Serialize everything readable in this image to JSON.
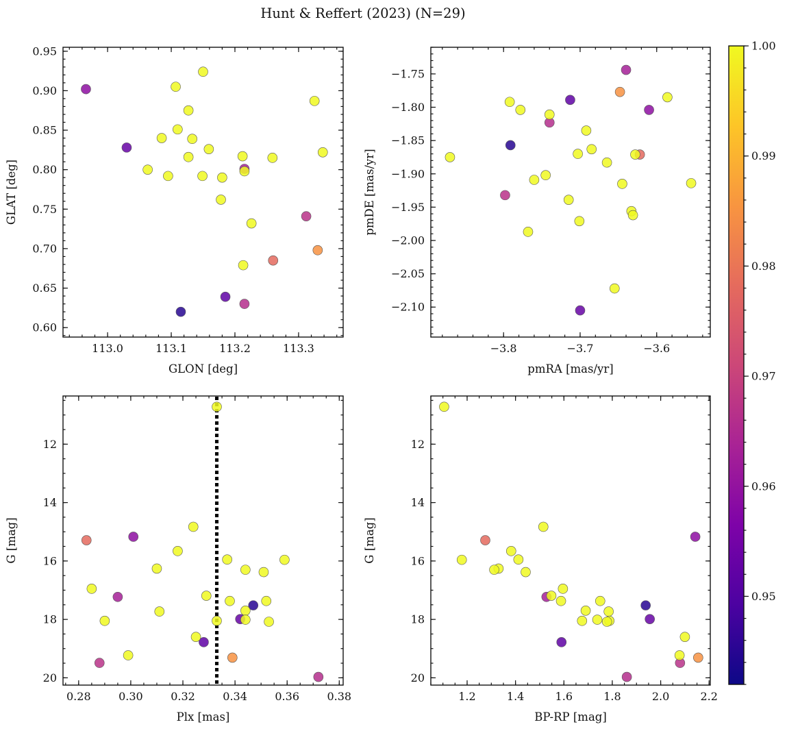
{
  "chart_data": {
    "title": "Hunt & Reffert (2023) (N=29)",
    "colorbar": {
      "min": 0.942,
      "max": 1.0,
      "ticks": [
        0.95,
        0.96,
        0.97,
        0.98,
        0.99,
        1.0
      ],
      "tick_labels": [
        "0.95",
        "0.96",
        "0.97",
        "0.98",
        "0.99",
        "1.00"
      ],
      "colormap": "plasma"
    },
    "stars": [
      {
        "glon": 113.215,
        "glat": 0.63,
        "pmra": -3.74,
        "pmde": -1.823,
        "plx": 0.372,
        "g": 19.97,
        "bprp": 1.86,
        "p": 0.966
      },
      {
        "glon": 113.312,
        "glat": 0.741,
        "pmra": -3.798,
        "pmde": -1.932,
        "plx": 0.288,
        "g": 19.49,
        "bprp": 2.08,
        "p": 0.967
      },
      {
        "glon": 113.26,
        "glat": 0.685,
        "pmra": -3.622,
        "pmde": -1.871,
        "plx": 0.283,
        "g": 15.29,
        "bprp": 1.275,
        "p": 0.978
      },
      {
        "glon": 113.33,
        "glat": 0.698,
        "pmra": -3.648,
        "pmde": -1.777,
        "plx": 0.339,
        "g": 19.31,
        "bprp": 2.155,
        "p": 0.985
      },
      {
        "glon": 112.966,
        "glat": 0.902,
        "pmra": -3.61,
        "pmde": -1.804,
        "plx": 0.301,
        "g": 15.17,
        "bprp": 2.143,
        "p": 0.959
      },
      {
        "glon": 113.215,
        "glat": 0.801,
        "pmra": -3.64,
        "pmde": -1.744,
        "plx": 0.295,
        "g": 17.23,
        "bprp": 1.528,
        "p": 0.963
      },
      {
        "glon": 113.03,
        "glat": 0.828,
        "pmra": -3.7,
        "pmde": -2.105,
        "plx": 0.342,
        "g": 17.99,
        "bprp": 1.955,
        "p": 0.953
      },
      {
        "glon": 113.185,
        "glat": 0.639,
        "pmra": -3.713,
        "pmde": -1.789,
        "plx": 0.328,
        "g": 18.78,
        "bprp": 1.59,
        "p": 0.952
      },
      {
        "glon": 113.115,
        "glat": 0.62,
        "pmra": -3.791,
        "pmde": -1.857,
        "plx": 0.347,
        "g": 17.52,
        "bprp": 1.938,
        "p": 0.945
      },
      {
        "glon": 113.15,
        "glat": 0.924,
        "pmra": -3.87,
        "pmde": -1.875,
        "plx": 0.333,
        "g": 10.72,
        "bprp": 1.105,
        "p": 1.0
      },
      {
        "glon": 113.107,
        "glat": 0.905,
        "pmra": -3.792,
        "pmde": -1.792,
        "plx": 0.324,
        "g": 14.83,
        "bprp": 1.515,
        "p": 1.0
      },
      {
        "glon": 113.325,
        "glat": 0.887,
        "pmra": -3.778,
        "pmde": -1.804,
        "plx": 0.359,
        "g": 15.96,
        "bprp": 1.178,
        "p": 1.0
      },
      {
        "glon": 113.127,
        "glat": 0.875,
        "pmra": -3.74,
        "pmde": -1.811,
        "plx": 0.318,
        "g": 15.66,
        "bprp": 1.382,
        "p": 1.0
      },
      {
        "glon": 113.11,
        "glat": 0.851,
        "pmra": -3.586,
        "pmde": -1.785,
        "plx": 0.337,
        "g": 15.95,
        "bprp": 1.412,
        "p": 1.0
      },
      {
        "glon": 113.085,
        "glat": 0.84,
        "pmra": -3.692,
        "pmde": -1.835,
        "plx": 0.31,
        "g": 16.26,
        "bprp": 1.33,
        "p": 1.0
      },
      {
        "glon": 113.133,
        "glat": 0.839,
        "pmra": -3.685,
        "pmde": -1.863,
        "plx": 0.344,
        "g": 16.3,
        "bprp": 1.312,
        "p": 1.0
      },
      {
        "glon": 113.159,
        "glat": 0.826,
        "pmra": -3.703,
        "pmde": -1.87,
        "plx": 0.351,
        "g": 16.38,
        "bprp": 1.442,
        "p": 1.0
      },
      {
        "glon": 113.338,
        "glat": 0.822,
        "pmra": -3.665,
        "pmde": -1.883,
        "plx": 0.285,
        "g": 16.95,
        "bprp": 1.596,
        "p": 1.0
      },
      {
        "glon": 113.212,
        "glat": 0.817,
        "pmra": -3.628,
        "pmde": -1.871,
        "plx": 0.329,
        "g": 17.19,
        "bprp": 1.548,
        "p": 1.0
      },
      {
        "glon": 113.127,
        "glat": 0.816,
        "pmra": -3.745,
        "pmde": -1.902,
        "plx": 0.338,
        "g": 17.37,
        "bprp": 1.588,
        "p": 1.0
      },
      {
        "glon": 113.259,
        "glat": 0.815,
        "pmra": -3.76,
        "pmde": -1.909,
        "plx": 0.352,
        "g": 17.37,
        "bprp": 1.75,
        "p": 1.0
      },
      {
        "glon": 113.063,
        "glat": 0.8,
        "pmra": -3.645,
        "pmde": -1.915,
        "plx": 0.344,
        "g": 17.7,
        "bprp": 1.69,
        "p": 1.0
      },
      {
        "glon": 113.215,
        "glat": 0.798,
        "pmra": -3.555,
        "pmde": -1.914,
        "plx": 0.311,
        "g": 17.73,
        "bprp": 1.785,
        "p": 1.0
      },
      {
        "glon": 113.095,
        "glat": 0.792,
        "pmra": -3.715,
        "pmde": -1.939,
        "plx": 0.29,
        "g": 18.05,
        "bprp": 1.788,
        "p": 1.0
      },
      {
        "glon": 113.149,
        "glat": 0.792,
        "pmra": -3.633,
        "pmde": -1.956,
        "plx": 0.333,
        "g": 18.05,
        "bprp": 1.675,
        "p": 1.0
      },
      {
        "glon": 113.18,
        "glat": 0.79,
        "pmra": -3.631,
        "pmde": -1.962,
        "plx": 0.344,
        "g": 18.01,
        "bprp": 1.738,
        "p": 1.0
      },
      {
        "glon": 113.178,
        "glat": 0.762,
        "pmra": -3.701,
        "pmde": -1.971,
        "plx": 0.353,
        "g": 18.08,
        "bprp": 1.778,
        "p": 1.0
      },
      {
        "glon": 113.226,
        "glat": 0.732,
        "pmra": -3.768,
        "pmde": -1.987,
        "plx": 0.325,
        "g": 18.6,
        "bprp": 2.1,
        "p": 1.0
      },
      {
        "glon": 113.213,
        "glat": 0.679,
        "pmra": -3.655,
        "pmde": -2.072,
        "plx": 0.299,
        "g": 19.23,
        "bprp": 2.078,
        "p": 1.0
      }
    ],
    "panels": [
      {
        "id": "position",
        "type": "scatter",
        "x_key": "glon",
        "y_key": "glat",
        "xlabel": "GLON [deg]",
        "ylabel": "GLAT [deg]",
        "xlim": [
          112.93,
          113.37
        ],
        "ylim": [
          0.588,
          0.955
        ],
        "invert_y": false,
        "xticks": [
          113.0,
          113.1,
          113.2,
          113.3
        ],
        "xtick_labels": [
          "113.0",
          "113.1",
          "113.2",
          "113.3"
        ],
        "yticks": [
          0.6,
          0.65,
          0.7,
          0.75,
          0.8,
          0.85,
          0.9,
          0.95
        ],
        "ytick_labels": [
          "0.60",
          "0.65",
          "0.70",
          "0.75",
          "0.80",
          "0.85",
          "0.90",
          "0.95"
        ],
        "xminor": 0.02,
        "yminor": 0.01
      },
      {
        "id": "proper-motion",
        "type": "scatter",
        "x_key": "pmra",
        "y_key": "pmde",
        "xlabel": "pmRA [mas/yr]",
        "ylabel": "pmDE [mas/yr]",
        "xlim": [
          -3.895,
          -3.53
        ],
        "ylim": [
          -2.145,
          -1.71
        ],
        "invert_y": false,
        "xticks": [
          -3.8,
          -3.7,
          -3.6
        ],
        "xtick_labels": [
          "−3.8",
          "−3.7",
          "−3.6"
        ],
        "yticks": [
          -2.1,
          -2.05,
          -2.0,
          -1.95,
          -1.9,
          -1.85,
          -1.8,
          -1.75
        ],
        "ytick_labels": [
          "−2.10",
          "−2.05",
          "−2.00",
          "−1.95",
          "−1.90",
          "−1.85",
          "−1.80",
          "−1.75"
        ],
        "xminor": 0.02,
        "yminor": 0.01
      },
      {
        "id": "parallax-mag",
        "type": "scatter",
        "x_key": "plx",
        "y_key": "g",
        "xlabel": "Plx [mas]",
        "ylabel": "G [mag]",
        "xlim": [
          0.274,
          0.3815
        ],
        "ylim": [
          10.35,
          20.25
        ],
        "invert_y": true,
        "xticks": [
          0.28,
          0.3,
          0.32,
          0.34,
          0.36,
          0.38
        ],
        "xtick_labels": [
          "0.28",
          "0.30",
          "0.32",
          "0.34",
          "0.36",
          "0.38"
        ],
        "yticks": [
          12,
          14,
          16,
          18,
          20
        ],
        "ytick_labels": [
          "12",
          "14",
          "16",
          "18",
          "20"
        ],
        "xminor": 0.005,
        "yminor": 0.5,
        "vline": {
          "x": 0.333,
          "style": "dotted"
        }
      },
      {
        "id": "cmd",
        "type": "scatter",
        "x_key": "bprp",
        "y_key": "g",
        "xlabel": "BP-RP [mag]",
        "ylabel": "G [mag]",
        "xlim": [
          1.05,
          2.205
        ],
        "ylim": [
          10.35,
          20.25
        ],
        "invert_y": true,
        "xticks": [
          1.2,
          1.4,
          1.6,
          1.8,
          2.0,
          2.2
        ],
        "xtick_labels": [
          "1.2",
          "1.4",
          "1.6",
          "1.8",
          "2.0",
          "2.2"
        ],
        "yticks": [
          12,
          14,
          16,
          18,
          20
        ],
        "ytick_labels": [
          "12",
          "14",
          "16",
          "18",
          "20"
        ],
        "xminor": 0.05,
        "yminor": 0.5
      }
    ]
  }
}
